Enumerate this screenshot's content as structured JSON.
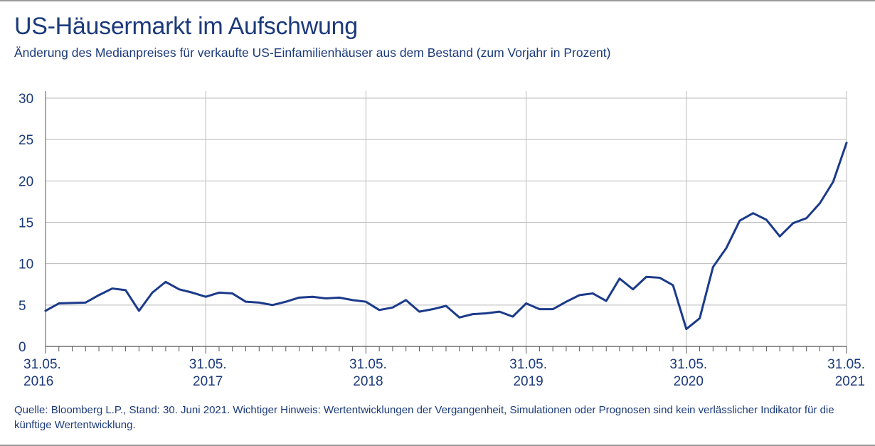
{
  "title": "US-Häusermarkt im Aufschwung",
  "subtitle": "Änderung des Medianpreises für verkaufte US-Einfamilienhäuser aus dem Bestand (zum Vorjahr in Prozent)",
  "footnote": "Quelle: Bloomberg L.P., Stand: 30. Juni 2021. Wichtiger Hinweis: Wertentwicklungen der Vergangenheit, Simulationen oder Prognosen sind kein verlässlicher Indikator für die künftige Wertentwicklung.",
  "colors": {
    "line": "#1b3a8a",
    "text": "#1b3a7a",
    "grid": "#b9b9b9",
    "axis": "#555555"
  },
  "chart_data": {
    "type": "line",
    "title": "US-Häusermarkt im Aufschwung",
    "xlabel": "",
    "ylabel": "",
    "ylim": [
      0,
      30
    ],
    "yticks": [
      0,
      5,
      10,
      15,
      20,
      25,
      30
    ],
    "x_tick_labels": [
      [
        "31.05.",
        "2016"
      ],
      [
        "31.05.",
        "2017"
      ],
      [
        "31.05.",
        "2018"
      ],
      [
        "31.05.",
        "2019"
      ],
      [
        "31.05.",
        "2020"
      ],
      [
        "31.05.",
        "2021"
      ]
    ],
    "x_start": "2016-05",
    "x_end": "2021-05",
    "grid": true,
    "series": [
      {
        "values": [
          4.3,
          5.2,
          5.25,
          5.3,
          6.2,
          7.0,
          6.8,
          4.3,
          6.5,
          7.8,
          6.9,
          6.5,
          6.0,
          6.5,
          6.4,
          5.4,
          5.3,
          5.0,
          5.4,
          5.9,
          6.0,
          5.8,
          5.9,
          5.6,
          5.4,
          4.4,
          4.7,
          5.6,
          4.2,
          4.5,
          4.9,
          3.5,
          3.9,
          4.0,
          4.2,
          3.6,
          5.2,
          4.5,
          4.5,
          5.4,
          6.2,
          6.4,
          5.5,
          8.2,
          6.9,
          8.4,
          8.3,
          7.4,
          2.1,
          3.4,
          9.6,
          11.9,
          15.2,
          16.1,
          15.3,
          13.3,
          14.9,
          15.5,
          17.3,
          19.9,
          24.6
        ]
      }
    ]
  }
}
